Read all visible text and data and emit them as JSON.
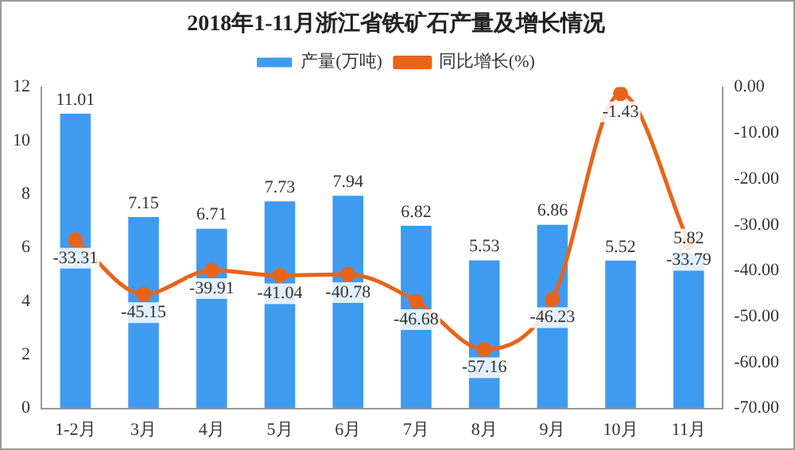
{
  "chart_data": {
    "type": "bar",
    "title": "2018年1-11月浙江省铁矿石产量及增长情况",
    "categories": [
      "1-2月",
      "3月",
      "4月",
      "5月",
      "6月",
      "7月",
      "8月",
      "9月",
      "10月",
      "11月"
    ],
    "series": [
      {
        "name": "产量(万吨)",
        "color": "#3e9bf0",
        "values": [
          11.01,
          7.15,
          6.71,
          7.73,
          7.94,
          6.82,
          5.53,
          6.86,
          5.52,
          5.82
        ]
      },
      {
        "name": "同比增长(%)",
        "type": "line",
        "axis": "y2",
        "color": "#e8641b",
        "values": [
          -33.31,
          -45.15,
          -39.91,
          -41.04,
          -40.78,
          -46.68,
          -57.16,
          -46.23,
          -1.43,
          -33.79
        ]
      }
    ],
    "ylim": [
      0,
      12
    ],
    "yticks": [
      0,
      2,
      4,
      6,
      8,
      10,
      12
    ],
    "y2lim": [
      -70,
      0
    ],
    "y2ticks": [
      {
        "value": -70,
        "label": "-70.00"
      },
      {
        "value": -60,
        "label": "-60.00"
      },
      {
        "value": -50,
        "label": "-50.00"
      },
      {
        "value": -40,
        "label": "-40.00"
      },
      {
        "value": -30,
        "label": "-30.00"
      },
      {
        "value": -20,
        "label": "-20.00"
      },
      {
        "value": -10,
        "label": "-10.00"
      },
      {
        "value": 0,
        "label": "0.00"
      }
    ],
    "grid": false,
    "legend": "top",
    "marker": "circle",
    "data_labels": true
  }
}
